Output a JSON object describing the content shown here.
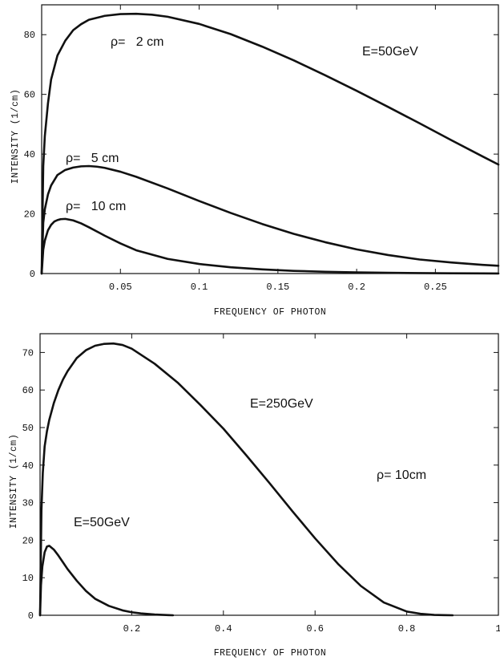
{
  "chart_data": [
    {
      "type": "line",
      "xlabel": "FREQUENCY OF PHOTON",
      "ylabel": "INTENSITY (1/cm)",
      "xlim": [
        0,
        0.29
      ],
      "ylim": [
        0,
        90
      ],
      "xticks": [
        0.05,
        0.1,
        0.15,
        0.2,
        0.25
      ],
      "xtick_labels": [
        "0.05",
        "0.1",
        "0.15",
        "0.2",
        "0.25"
      ],
      "yticks": [
        0,
        20,
        40,
        60,
        80
      ],
      "ytick_labels": [
        "0",
        "20",
        "40",
        "60",
        "80"
      ],
      "grid": false,
      "series": [
        {
          "name": "ρ=   2 cm",
          "x": [
            0,
            0.001,
            0.002,
            0.004,
            0.006,
            0.01,
            0.015,
            0.02,
            0.025,
            0.03,
            0.04,
            0.05,
            0.06,
            0.07,
            0.08,
            0.1,
            0.12,
            0.14,
            0.16,
            0.18,
            0.2,
            0.22,
            0.24,
            0.26,
            0.28,
            0.29
          ],
          "y": [
            0,
            36,
            46,
            57,
            65,
            73,
            78,
            81.5,
            83.5,
            85,
            86.3,
            86.9,
            87,
            86.7,
            86,
            83.6,
            80.2,
            76,
            71.4,
            66.4,
            61.2,
            55.8,
            50.3,
            44.7,
            39.2,
            36.5
          ]
        },
        {
          "name": "ρ=   5 cm",
          "x": [
            0,
            0.001,
            0.002,
            0.004,
            0.006,
            0.01,
            0.015,
            0.02,
            0.025,
            0.03,
            0.035,
            0.04,
            0.05,
            0.06,
            0.08,
            0.1,
            0.12,
            0.14,
            0.16,
            0.18,
            0.2,
            0.22,
            0.24,
            0.26,
            0.28,
            0.29
          ],
          "y": [
            0,
            17,
            21.5,
            26.5,
            29.5,
            33,
            34.7,
            35.5,
            35.9,
            36,
            35.8,
            35.4,
            34.1,
            32.4,
            28.5,
            24.3,
            20.3,
            16.6,
            13.3,
            10.5,
            8.1,
            6.2,
            4.7,
            3.7,
            2.9,
            2.6
          ]
        },
        {
          "name": "ρ=   10 cm",
          "x": [
            0,
            0.001,
            0.002,
            0.004,
            0.006,
            0.008,
            0.01,
            0.012,
            0.015,
            0.02,
            0.025,
            0.03,
            0.04,
            0.05,
            0.06,
            0.08,
            0.1,
            0.12,
            0.14,
            0.16,
            0.18,
            0.2,
            0.22,
            0.24,
            0.26,
            0.28,
            0.29
          ],
          "y": [
            0,
            8,
            11,
            14.5,
            16.3,
            17.4,
            17.9,
            18.2,
            18.3,
            17.8,
            16.8,
            15.5,
            12.7,
            10.1,
            7.8,
            4.9,
            3.2,
            2.1,
            1.4,
            0.9,
            0.6,
            0.4,
            0.25,
            0.15,
            0.08,
            0.04,
            0.02
          ]
        }
      ],
      "annotations": {
        "rho2": "ρ=   2 cm",
        "rho5": "ρ=   5 cm",
        "rho10": "ρ=   10 cm",
        "energy": "E=50GeV"
      }
    },
    {
      "type": "line",
      "xlabel": "FREQUENCY OF PHOTON",
      "ylabel": "INTENSITY (1/cm)",
      "xlim": [
        0,
        1
      ],
      "ylim": [
        0,
        75
      ],
      "xticks": [
        0.2,
        0.4,
        0.6,
        0.8,
        1
      ],
      "xtick_labels": [
        "0.2",
        "0.4",
        "0.6",
        "0.8",
        "1"
      ],
      "yticks": [
        0,
        10,
        20,
        30,
        40,
        50,
        60,
        70
      ],
      "ytick_labels": [
        "0",
        "10",
        "20",
        "30",
        "40",
        "50",
        "60",
        "70"
      ],
      "grid": false,
      "series": [
        {
          "name": "E=250GeV",
          "x": [
            0,
            0.003,
            0.006,
            0.01,
            0.015,
            0.02,
            0.03,
            0.04,
            0.05,
            0.06,
            0.08,
            0.1,
            0.12,
            0.14,
            0.16,
            0.18,
            0.2,
            0.25,
            0.3,
            0.35,
            0.4,
            0.45,
            0.5,
            0.55,
            0.6,
            0.65,
            0.7,
            0.75,
            0.8,
            0.83,
            0.86,
            0.88,
            0.9
          ],
          "y": [
            0,
            28,
            38,
            45,
            49,
            52,
            56.5,
            60,
            62.8,
            65,
            68.5,
            70.6,
            71.8,
            72.3,
            72.4,
            72,
            71,
            67,
            62,
            56,
            49.7,
            42.6,
            35.3,
            27.8,
            20.5,
            13.7,
            7.8,
            3.4,
            1,
            0.4,
            0.1,
            0.03,
            0
          ]
        },
        {
          "name": "E=50GeV",
          "x": [
            0,
            0.002,
            0.005,
            0.01,
            0.015,
            0.02,
            0.03,
            0.04,
            0.05,
            0.06,
            0.08,
            0.1,
            0.12,
            0.15,
            0.18,
            0.2,
            0.22,
            0.25,
            0.28,
            0.29
          ],
          "y": [
            0,
            8,
            13,
            16.8,
            18.3,
            18.5,
            17.5,
            15.9,
            14.1,
            12.3,
            9.2,
            6.5,
            4.4,
            2.5,
            1.3,
            0.8,
            0.5,
            0.2,
            0.05,
            0
          ]
        }
      ],
      "annotations": {
        "energy250": "E=250GeV",
        "energy50": "E=50GeV",
        "rho": "ρ= 10cm"
      }
    }
  ]
}
